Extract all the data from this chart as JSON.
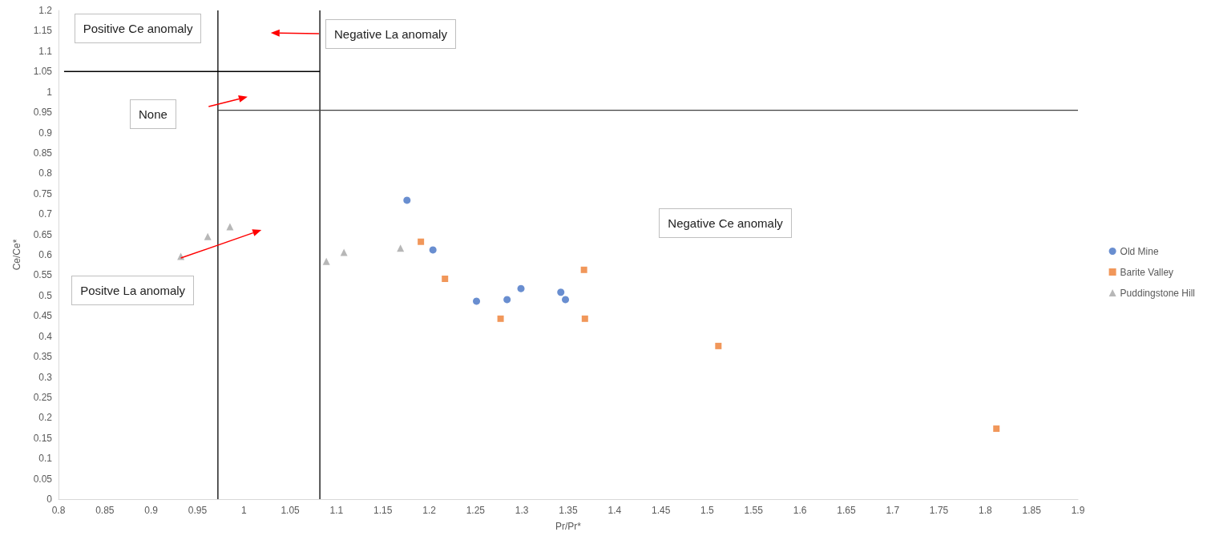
{
  "chart_data": {
    "type": "scatter",
    "xlabel": "Pr/Pr*",
    "ylabel": "Ce/Ce*",
    "xlim": [
      0.8,
      1.9
    ],
    "xticks": [
      0.8,
      0.85,
      0.9,
      0.95,
      1,
      1.05,
      1.1,
      1.15,
      1.2,
      1.25,
      1.3,
      1.35,
      1.4,
      1.45,
      1.5,
      1.55,
      1.6,
      1.65,
      1.7,
      1.75,
      1.8,
      1.85,
      1.9
    ],
    "ylim": [
      0,
      1.2
    ],
    "yticks": [
      0,
      0.05,
      0.1,
      0.15,
      0.2,
      0.25,
      0.3,
      0.35,
      0.4,
      0.45,
      0.5,
      0.55,
      0.6,
      0.65,
      0.7,
      0.75,
      0.8,
      0.85,
      0.9,
      0.95,
      1,
      1.05,
      1.1,
      1.15,
      1.2
    ],
    "grid": false,
    "legend": "right",
    "series": [
      {
        "name": "Old Mine",
        "color": "#4472c4",
        "marker": "circle",
        "x": [
          1.176,
          1.204,
          1.251,
          1.284,
          1.299,
          1.342,
          1.347
        ],
        "values": [
          0.734,
          0.612,
          0.486,
          0.49,
          0.517,
          0.508,
          0.49
        ]
      },
      {
        "name": "Barite Valley",
        "color": "#ed7d31",
        "marker": "square",
        "x": [
          1.191,
          1.217,
          1.277,
          1.367,
          1.368,
          1.512,
          1.812
        ],
        "values": [
          0.632,
          0.541,
          0.443,
          0.563,
          0.443,
          0.376,
          0.173
        ]
      },
      {
        "name": "Puddingstone Hill",
        "color": "#a5a5a5",
        "marker": "triangle",
        "x": [
          0.932,
          0.961,
          0.985,
          1.089,
          1.108,
          1.169
        ],
        "values": [
          0.596,
          0.645,
          0.669,
          0.584,
          0.606,
          0.616
        ]
      },
      {
        "type": "line",
        "color": "#000000",
        "marker": "none",
        "x": [
          0.972,
          0.972
        ],
        "values": [
          0,
          1.2
        ]
      },
      {
        "type": "line",
        "color": "#000000",
        "marker": "none",
        "x": [
          1.082,
          1.082
        ],
        "values": [
          0,
          1.2
        ]
      },
      {
        "type": "line",
        "color": "#000000",
        "marker": "none",
        "x": [
          0.806,
          1.082
        ],
        "values": [
          1.05,
          1.05
        ]
      },
      {
        "type": "line",
        "color": "#404040",
        "marker": "none",
        "x": [
          0.972,
          1.9
        ],
        "values": [
          0.955,
          0.955
        ]
      }
    ],
    "annotations": [
      "Positive Ce anomaly",
      "Negative La anomaly",
      "None",
      "Negative Ce anomaly",
      "Positve La anomaly"
    ]
  }
}
